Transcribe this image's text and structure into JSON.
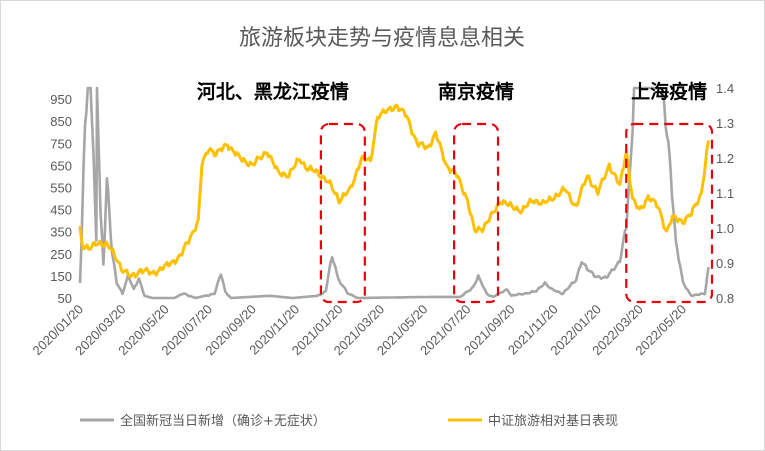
{
  "chart_data": {
    "type": "line",
    "title": "旅游板块走势与疫情息息相关",
    "x_tick_labels": [
      "2020/01/20",
      "2020/03/20",
      "2020/05/20",
      "2020/07/20",
      "2020/09/20",
      "2020/11/20",
      "2021/01/20",
      "2021/03/20",
      "2021/05/20",
      "2021/07/20",
      "2021/09/20",
      "2021/11/20",
      "2022/01/20",
      "2022/03/20",
      "2022/05/20"
    ],
    "x_range": [
      "2020-01-20",
      "2022-06-30"
    ],
    "y_left": {
      "ticks": [
        "50",
        "150",
        "250",
        "350",
        "450",
        "550",
        "650",
        "750",
        "850",
        "950"
      ],
      "range": [
        50,
        1000
      ]
    },
    "y_right": {
      "ticks": [
        "0.8",
        "0.9",
        "1.0",
        "1.1",
        "1.2",
        "1.3",
        "1.4"
      ],
      "range": [
        0.8,
        1.4
      ]
    },
    "annotations": [
      {
        "text": "河北、黑龙江疫情",
        "period": [
          "2020-12-25",
          "2021-02-25"
        ]
      },
      {
        "text": "南京疫情",
        "period": [
          "2021-07-01",
          "2021-09-01"
        ]
      },
      {
        "text": "上海疫情",
        "period": [
          "2022-03-01",
          "2022-06-30"
        ]
      }
    ],
    "series": [
      {
        "name": "全国新冠当日新增（确诊+无症状）",
        "axis": "left",
        "color": "#a6a6a6",
        "points": [
          [
            "2020-01-20",
            120
          ],
          [
            "2020-01-23",
            400
          ],
          [
            "2020-01-27",
            850
          ],
          [
            "2020-01-31",
            1000
          ],
          [
            "2020-02-04",
            1000
          ],
          [
            "2020-02-08",
            700
          ],
          [
            "2020-02-12",
            300
          ],
          [
            "2020-02-13",
            1000
          ],
          [
            "2020-02-15",
            800
          ],
          [
            "2020-02-18",
            450
          ],
          [
            "2020-02-22",
            200
          ],
          [
            "2020-02-27",
            590
          ],
          [
            "2020-03-05",
            260
          ],
          [
            "2020-03-12",
            120
          ],
          [
            "2020-03-20",
            70
          ],
          [
            "2020-03-28",
            150
          ],
          [
            "2020-04-05",
            90
          ],
          [
            "2020-04-12",
            140
          ],
          [
            "2020-04-20",
            60
          ],
          [
            "2020-05-01",
            50
          ],
          [
            "2020-06-01",
            50
          ],
          [
            "2020-06-14",
            70
          ],
          [
            "2020-07-01",
            50
          ],
          [
            "2020-07-28",
            70
          ],
          [
            "2020-08-01",
            110
          ],
          [
            "2020-08-06",
            160
          ],
          [
            "2020-08-12",
            80
          ],
          [
            "2020-08-20",
            50
          ],
          [
            "2020-10-14",
            60
          ],
          [
            "2020-11-15",
            50
          ],
          [
            "2020-12-20",
            60
          ],
          [
            "2021-01-01",
            80
          ],
          [
            "2021-01-06",
            180
          ],
          [
            "2021-01-10",
            230
          ],
          [
            "2021-01-14",
            200
          ],
          [
            "2021-01-18",
            140
          ],
          [
            "2021-01-24",
            110
          ],
          [
            "2021-02-01",
            70
          ],
          [
            "2021-02-15",
            50
          ],
          [
            "2021-06-01",
            55
          ],
          [
            "2021-07-10",
            55
          ],
          [
            "2021-07-28",
            100
          ],
          [
            "2021-08-04",
            145
          ],
          [
            "2021-08-10",
            110
          ],
          [
            "2021-08-16",
            70
          ],
          [
            "2021-08-25",
            55
          ],
          [
            "2021-09-14",
            90
          ],
          [
            "2021-09-20",
            60
          ],
          [
            "2021-10-25",
            80
          ],
          [
            "2021-11-06",
            120
          ],
          [
            "2021-11-15",
            90
          ],
          [
            "2021-12-01",
            70
          ],
          [
            "2021-12-20",
            130
          ],
          [
            "2021-12-28",
            220
          ],
          [
            "2022-01-05",
            180
          ],
          [
            "2022-01-15",
            150
          ],
          [
            "2022-02-01",
            140
          ],
          [
            "2022-02-20",
            220
          ],
          [
            "2022-03-01",
            370
          ],
          [
            "2022-03-08",
            700
          ],
          [
            "2022-03-12",
            1000
          ],
          [
            "2022-04-20",
            1000
          ],
          [
            "2022-05-01",
            700
          ],
          [
            "2022-05-10",
            300
          ],
          [
            "2022-05-20",
            120
          ],
          [
            "2022-06-01",
            60
          ],
          [
            "2022-06-20",
            70
          ],
          [
            "2022-06-25",
            190
          ]
        ]
      },
      {
        "name": "中证旅游相对基日表现",
        "axis": "right",
        "color": "#ffc000",
        "points": [
          [
            "2020-01-20",
            1.0
          ],
          [
            "2020-01-24",
            0.95
          ],
          [
            "2020-02-03",
            0.94
          ],
          [
            "2020-02-15",
            0.96
          ],
          [
            "2020-02-28",
            0.95
          ],
          [
            "2020-03-10",
            0.92
          ],
          [
            "2020-03-20",
            0.88
          ],
          [
            "2020-04-01",
            0.86
          ],
          [
            "2020-04-15",
            0.88
          ],
          [
            "2020-05-01",
            0.87
          ],
          [
            "2020-05-20",
            0.89
          ],
          [
            "2020-06-10",
            0.92
          ],
          [
            "2020-06-25",
            0.98
          ],
          [
            "2020-07-05",
            1.02
          ],
          [
            "2020-07-10",
            1.18
          ],
          [
            "2020-07-20",
            1.23
          ],
          [
            "2020-07-30",
            1.21
          ],
          [
            "2020-08-15",
            1.24
          ],
          [
            "2020-09-01",
            1.2
          ],
          [
            "2020-09-20",
            1.18
          ],
          [
            "2020-10-10",
            1.22
          ],
          [
            "2020-10-25",
            1.16
          ],
          [
            "2020-11-10",
            1.15
          ],
          [
            "2020-11-25",
            1.2
          ],
          [
            "2020-12-05",
            1.17
          ],
          [
            "2020-12-20",
            1.16
          ],
          [
            "2021-01-05",
            1.13
          ],
          [
            "2021-01-20",
            1.08
          ],
          [
            "2021-02-05",
            1.11
          ],
          [
            "2021-02-20",
            1.2
          ],
          [
            "2021-03-05",
            1.19
          ],
          [
            "2021-03-15",
            1.32
          ],
          [
            "2021-03-25",
            1.33
          ],
          [
            "2021-04-10",
            1.35
          ],
          [
            "2021-04-25",
            1.32
          ],
          [
            "2021-05-10",
            1.24
          ],
          [
            "2021-05-25",
            1.23
          ],
          [
            "2021-06-05",
            1.27
          ],
          [
            "2021-06-20",
            1.18
          ],
          [
            "2021-07-05",
            1.15
          ],
          [
            "2021-07-20",
            1.08
          ],
          [
            "2021-07-30",
            0.99
          ],
          [
            "2021-08-10",
            1.0
          ],
          [
            "2021-08-25",
            1.04
          ],
          [
            "2021-09-05",
            1.08
          ],
          [
            "2021-09-20",
            1.06
          ],
          [
            "2021-10-05",
            1.05
          ],
          [
            "2021-10-20",
            1.08
          ],
          [
            "2021-11-05",
            1.07
          ],
          [
            "2021-11-20",
            1.09
          ],
          [
            "2021-12-05",
            1.11
          ],
          [
            "2021-12-20",
            1.06
          ],
          [
            "2022-01-05",
            1.15
          ],
          [
            "2022-01-20",
            1.1
          ],
          [
            "2022-02-05",
            1.18
          ],
          [
            "2022-02-20",
            1.12
          ],
          [
            "2022-03-01",
            1.22
          ],
          [
            "2022-03-10",
            1.08
          ],
          [
            "2022-03-20",
            1.05
          ],
          [
            "2022-04-01",
            1.09
          ],
          [
            "2022-04-15",
            1.06
          ],
          [
            "2022-04-27",
            0.99
          ],
          [
            "2022-05-05",
            1.03
          ],
          [
            "2022-05-20",
            1.02
          ],
          [
            "2022-06-01",
            1.04
          ],
          [
            "2022-06-15",
            1.1
          ],
          [
            "2022-06-25",
            1.25
          ]
        ]
      }
    ],
    "legend_position": "bottom",
    "grid": false
  }
}
